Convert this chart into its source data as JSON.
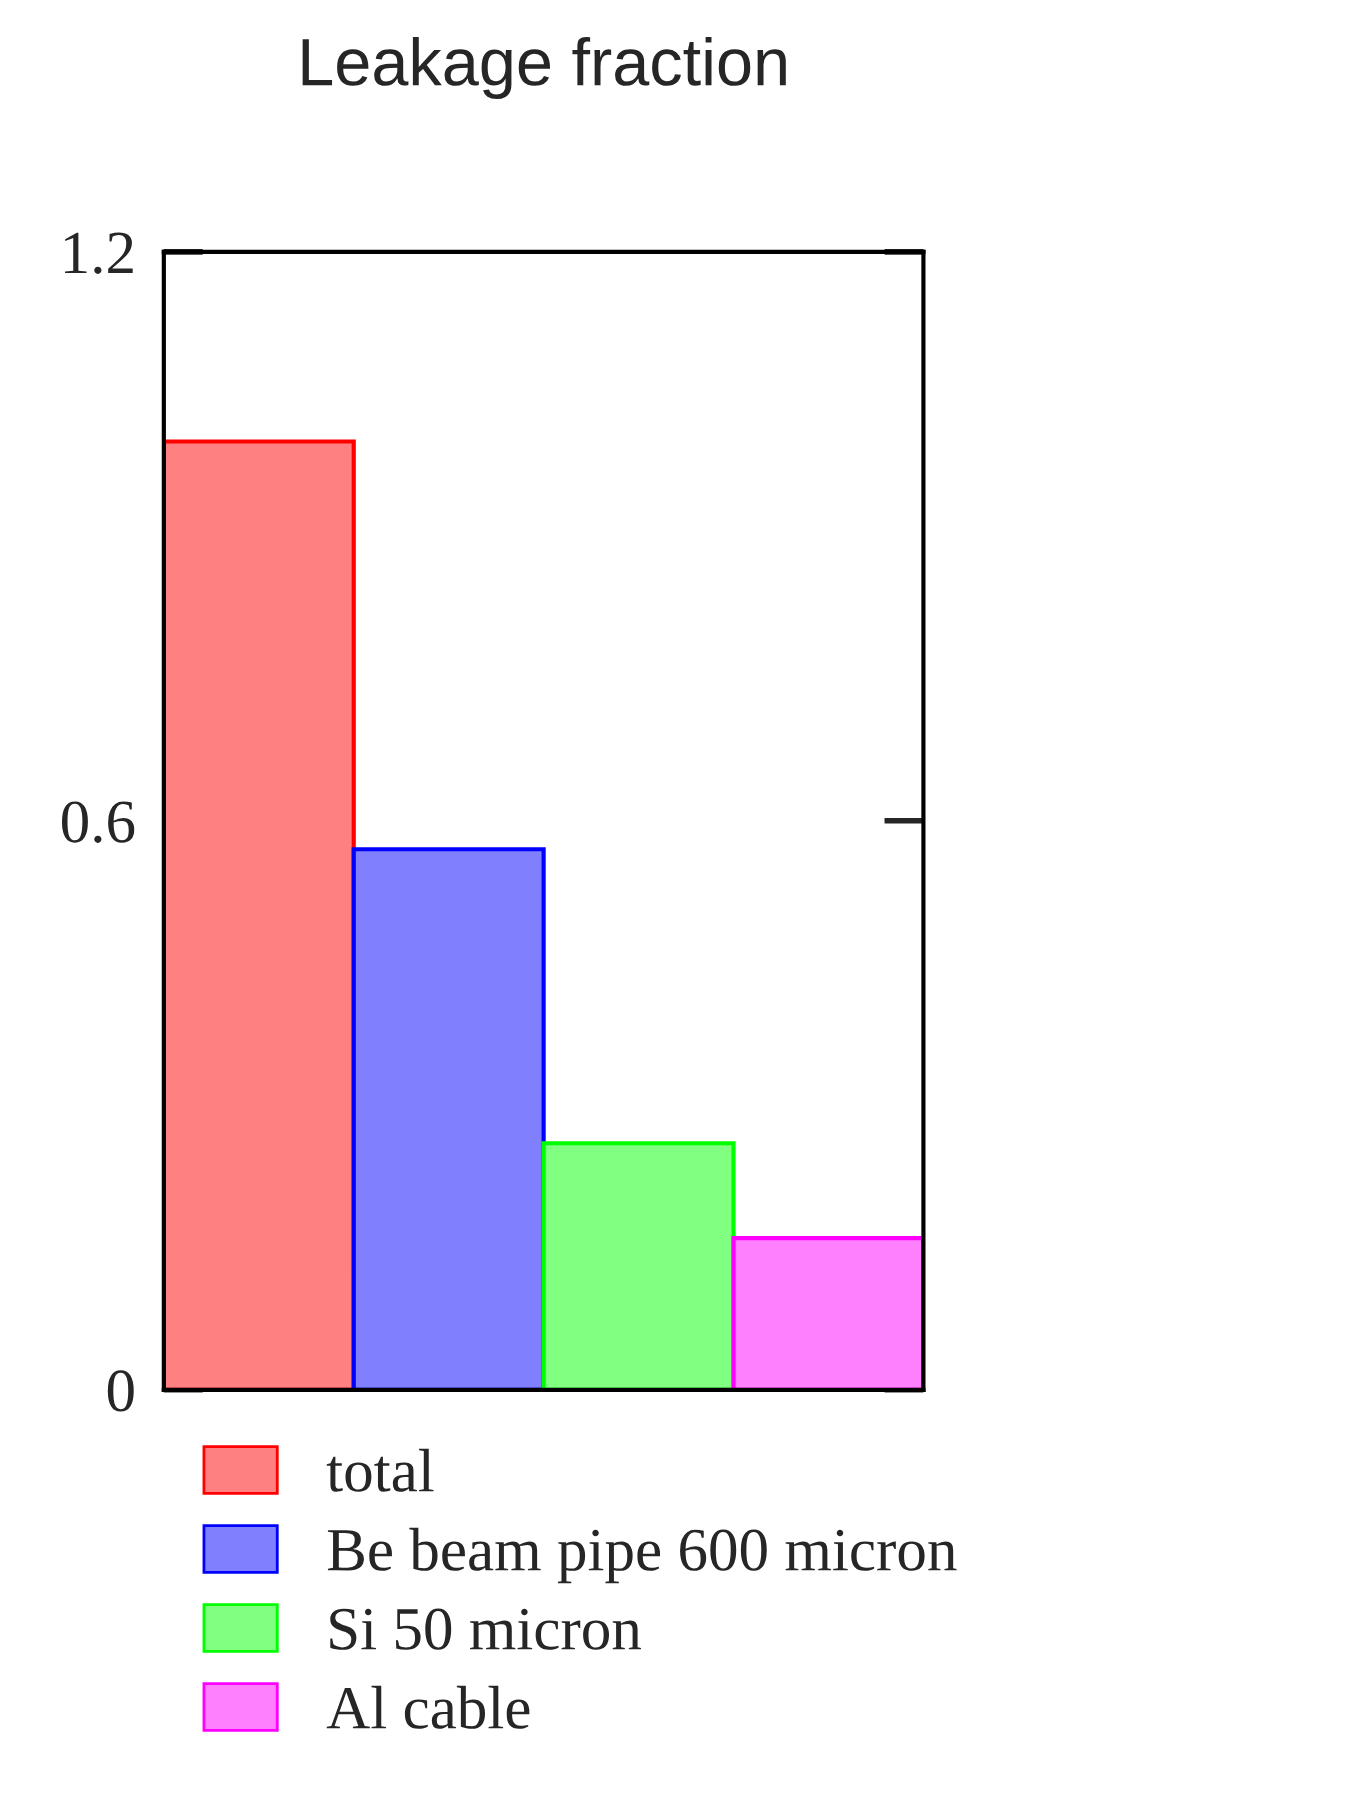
{
  "chart_data": {
    "type": "bar",
    "title": "Leakage fraction",
    "categories": [
      null,
      null,
      null,
      null
    ],
    "series": [
      {
        "name": "total",
        "color": "#ff8080",
        "values": [
          1.0,
          null,
          null,
          null
        ]
      },
      {
        "name": "Be beam pipe 600 micron",
        "color": "#8080ff",
        "values": [
          null,
          0.57,
          null,
          null
        ]
      },
      {
        "name": "Si 50 micron",
        "color": "#80ff80",
        "values": [
          null,
          null,
          0.26,
          null
        ]
      },
      {
        "name": "Al cable",
        "color": "#ff80ff",
        "values": [
          null,
          null,
          null,
          0.16
        ]
      }
    ],
    "ylim": [
      0,
      1.2
    ],
    "yticks": [
      0,
      0.6,
      1.2
    ],
    "grid": false,
    "legend": "bottom"
  }
}
